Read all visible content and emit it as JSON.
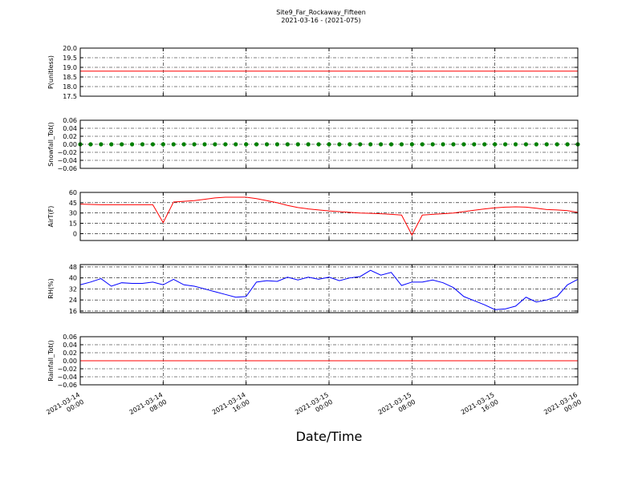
{
  "chart_data": {
    "title": "Site9_Far_Rockaway_Fifteen",
    "subtitle": "2021-03-16 - (2021-075)",
    "xlabel": "Date/Time",
    "xlim": [
      "2021-03-14 00:00",
      "2021-03-16 00:00"
    ],
    "xticks": [
      "2021-03-14 00:00",
      "2021-03-14 08:00",
      "2021-03-14 16:00",
      "2021-03-15 00:00",
      "2021-03-15 08:00",
      "2021-03-15 16:00",
      "2021-03-16 00:00"
    ],
    "grid": true,
    "x": [
      "2021-03-14 00:00",
      "2021-03-14 01:00",
      "2021-03-14 02:00",
      "2021-03-14 03:00",
      "2021-03-14 04:00",
      "2021-03-14 05:00",
      "2021-03-14 06:00",
      "2021-03-14 07:00",
      "2021-03-14 08:00",
      "2021-03-14 09:00",
      "2021-03-14 10:00",
      "2021-03-14 11:00",
      "2021-03-14 12:00",
      "2021-03-14 13:00",
      "2021-03-14 14:00",
      "2021-03-14 15:00",
      "2021-03-14 16:00",
      "2021-03-14 17:00",
      "2021-03-14 18:00",
      "2021-03-14 19:00",
      "2021-03-14 20:00",
      "2021-03-14 21:00",
      "2021-03-14 22:00",
      "2021-03-14 23:00",
      "2021-03-15 00:00",
      "2021-03-15 01:00",
      "2021-03-15 02:00",
      "2021-03-15 03:00",
      "2021-03-15 04:00",
      "2021-03-15 05:00",
      "2021-03-15 06:00",
      "2021-03-15 07:00",
      "2021-03-15 08:00",
      "2021-03-15 09:00",
      "2021-03-15 10:00",
      "2021-03-15 11:00",
      "2021-03-15 12:00",
      "2021-03-15 13:00",
      "2021-03-15 14:00",
      "2021-03-15 15:00",
      "2021-03-15 16:00",
      "2021-03-15 17:00",
      "2021-03-15 18:00",
      "2021-03-15 19:00",
      "2021-03-15 20:00",
      "2021-03-15 21:00",
      "2021-03-15 22:00",
      "2021-03-15 23:00",
      "2021-03-16 00:00"
    ],
    "panels": [
      {
        "type": "line",
        "ylabel": "P(unitless)",
        "ylim": [
          17.5,
          20.0
        ],
        "yticks": [
          17.5,
          {
            "value": 18,
            "label": "18.0"
          },
          18.5,
          {
            "value": 19,
            "label": "19.0"
          },
          19.5,
          {
            "value": 20,
            "label": "20.0"
          }
        ],
        "series": [
          {
            "color": "#ff0000",
            "values": [
              18.8,
              18.8,
              18.8,
              18.8,
              18.8,
              18.8,
              18.8,
              18.8,
              18.8,
              18.8,
              18.8,
              18.8,
              18.8,
              18.8,
              18.8,
              18.8,
              18.8,
              18.8,
              18.8,
              18.8,
              18.8,
              18.8,
              18.8,
              18.8,
              18.8,
              18.8,
              18.8,
              18.8,
              18.8,
              18.8,
              18.8,
              18.8,
              18.8,
              18.8,
              18.8,
              18.8,
              18.8,
              18.8,
              18.8,
              18.8,
              18.8,
              18.8,
              18.8,
              18.8,
              18.8,
              18.8,
              18.8,
              18.8,
              18.8
            ]
          }
        ]
      },
      {
        "type": "scatter",
        "ylabel": "Snowfall_Tot()",
        "ylim": [
          -0.06,
          0.06
        ],
        "yticks": [
          {
            "value": -0.06,
            "label": "−0.06"
          },
          {
            "value": -0.04,
            "label": "−0.04"
          },
          {
            "value": -0.02,
            "label": "−0.02"
          },
          {
            "value": 0,
            "label": "0.00"
          },
          {
            "value": 0.02,
            "label": "0.02"
          },
          {
            "value": 0.04,
            "label": "0.04"
          },
          {
            "value": 0.06,
            "label": "0.06"
          }
        ],
        "series": [
          {
            "color": "#008000",
            "values": [
              0,
              0,
              0,
              0,
              0,
              0,
              0,
              0,
              0,
              0,
              0,
              0,
              0,
              0,
              0,
              0,
              0,
              0,
              0,
              0,
              0,
              0,
              0,
              0,
              0,
              0,
              0,
              0,
              0,
              0,
              0,
              0,
              0,
              0,
              0,
              0,
              0,
              0,
              0,
              0,
              0,
              0,
              0,
              0,
              0,
              0,
              0,
              0,
              0
            ]
          }
        ]
      },
      {
        "type": "line",
        "ylabel": "AirT(F)",
        "ylim": [
          -10,
          60
        ],
        "yticks": [
          0,
          15,
          30,
          45,
          60
        ],
        "series": [
          {
            "color": "#ff0000",
            "values": [
              43,
              42.5,
              42,
              42,
              42,
              42,
              42,
              42,
              16,
              46,
              47,
              48,
              50,
              52,
              53,
              53,
              53,
              51,
              48,
              45,
              41,
              38,
              36,
              34.5,
              33,
              32,
              31,
              30,
              29.5,
              29,
              28,
              27,
              -2,
              27,
              28,
              29,
              30,
              32,
              34,
              36,
              37.5,
              38.5,
              39,
              38.5,
              37,
              35,
              34.5,
              33.5,
              31
            ]
          }
        ]
      },
      {
        "type": "line",
        "ylabel": "RH(%)",
        "ylim": [
          14.8,
          49.7
        ],
        "yticks": [
          16,
          24,
          32,
          40,
          48
        ],
        "series": [
          {
            "color": "#0000ff",
            "values": [
              35,
              37,
              39.5,
              34,
              36.5,
              36,
              36,
              37,
              35,
              39,
              35,
              34,
              32,
              30,
              28,
              26,
              26.5,
              37,
              38,
              37.5,
              40.5,
              38.5,
              40.5,
              39,
              40.5,
              38,
              40,
              41,
              45.5,
              42,
              44,
              34.5,
              37,
              37,
              38.5,
              36.5,
              33,
              26.5,
              23.5,
              20.5,
              17,
              17.5,
              19.5,
              26,
              22.5,
              24,
              26.5,
              35,
              39
            ]
          }
        ]
      },
      {
        "type": "line",
        "ylabel": "Rainfall_Tot()",
        "ylim": [
          -0.06,
          0.06
        ],
        "yticks": [
          {
            "value": -0.06,
            "label": "−0.06"
          },
          {
            "value": -0.04,
            "label": "−0.04"
          },
          {
            "value": -0.02,
            "label": "−0.02"
          },
          {
            "value": 0,
            "label": "0.00"
          },
          {
            "value": 0.02,
            "label": "0.02"
          },
          {
            "value": 0.04,
            "label": "0.04"
          },
          {
            "value": 0.06,
            "label": "0.06"
          }
        ],
        "series": [
          {
            "color": "#ff0000",
            "values": [
              0,
              0,
              0,
              0,
              0,
              0,
              0,
              0,
              0,
              0,
              0,
              0,
              0,
              0,
              0,
              0,
              0,
              0,
              0,
              0,
              0,
              0,
              0,
              0,
              0,
              0,
              0,
              0,
              0,
              0,
              0,
              0,
              0,
              0,
              0,
              0,
              0,
              0,
              0,
              0,
              0,
              0,
              0,
              0,
              0,
              0,
              0,
              0,
              0
            ]
          }
        ]
      }
    ]
  }
}
